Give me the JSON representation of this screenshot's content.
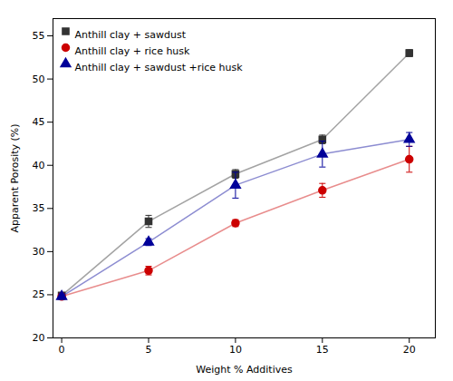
{
  "chart_data": {
    "type": "line",
    "xlabel": "Weight % Additives",
    "ylabel": "Apparent Porosity (%)",
    "x": [
      0,
      5,
      10,
      15,
      20
    ],
    "series": [
      {
        "name": "Anthill clay + sawdust",
        "color": "#333333",
        "marker": "square",
        "values": [
          24.9,
          33.5,
          39.0,
          43.0,
          53.0
        ],
        "yerr": [
          0.3,
          0.7,
          0.5,
          0.5,
          0.4
        ]
      },
      {
        "name": "Anthill clay + rice husk",
        "color": "#cc0000",
        "marker": "circle",
        "values": [
          24.8,
          27.8,
          33.3,
          37.1,
          40.7
        ],
        "yerr": [
          0.3,
          0.5,
          0.4,
          0.8,
          1.5
        ]
      },
      {
        "name": "Anthill clay + sawdust +rice husk",
        "color": "#000099",
        "marker": "triangle",
        "values": [
          24.8,
          31.1,
          37.7,
          41.3,
          43.0
        ],
        "yerr": [
          0.3,
          0.4,
          1.5,
          1.5,
          0.8
        ]
      }
    ],
    "xlim": [
      -0.5,
      21.5
    ],
    "ylim": [
      20,
      57
    ],
    "xticks": [
      0,
      5,
      10,
      15,
      20
    ],
    "yticks": [
      20,
      25,
      30,
      35,
      40,
      45,
      50,
      55
    ],
    "legend": "upper left",
    "grid": false
  }
}
